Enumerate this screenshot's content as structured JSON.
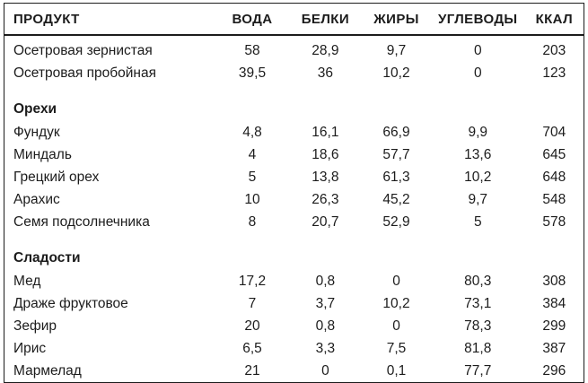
{
  "table": {
    "columns": [
      "ПРОДУКТ",
      "ВОДА",
      "БЕЛКИ",
      "ЖИРЫ",
      "УГЛЕВОДЫ",
      "ККАЛ"
    ],
    "sections": [
      {
        "title": "",
        "rows": [
          [
            "Осетровая зернистая",
            "58",
            "28,9",
            "9,7",
            "0",
            "203"
          ],
          [
            "Осетровая пробойная",
            "39,5",
            "36",
            "10,2",
            "0",
            "123"
          ]
        ]
      },
      {
        "title": "Орехи",
        "rows": [
          [
            "Фундук",
            "4,8",
            "16,1",
            "66,9",
            "9,9",
            "704"
          ],
          [
            "Миндаль",
            "4",
            "18,6",
            "57,7",
            "13,6",
            "645"
          ],
          [
            "Грецкий орех",
            "5",
            "13,8",
            "61,3",
            "10,2",
            "648"
          ],
          [
            "Арахис",
            "10",
            "26,3",
            "45,2",
            "9,7",
            "548"
          ],
          [
            "Семя подсолнечника",
            "8",
            "20,7",
            "52,9",
            "5",
            "578"
          ]
        ]
      },
      {
        "title": "Сладости",
        "rows": [
          [
            "Мед",
            "17,2",
            "0,8",
            "0",
            "80,3",
            "308"
          ],
          [
            "Драже фруктовое",
            "7",
            "3,7",
            "10,2",
            "73,1",
            "384"
          ],
          [
            "Зефир",
            "20",
            "0,8",
            "0",
            "78,3",
            "299"
          ],
          [
            "Ирис",
            "6,5",
            "3,3",
            "7,5",
            "81,8",
            "387"
          ],
          [
            "Мармелад",
            "21",
            "0",
            "0,1",
            "77,7",
            "296"
          ]
        ]
      }
    ]
  },
  "colors": {
    "text": "#1c1c1c",
    "border": "#1c1c1c",
    "background": "#ffffff"
  }
}
